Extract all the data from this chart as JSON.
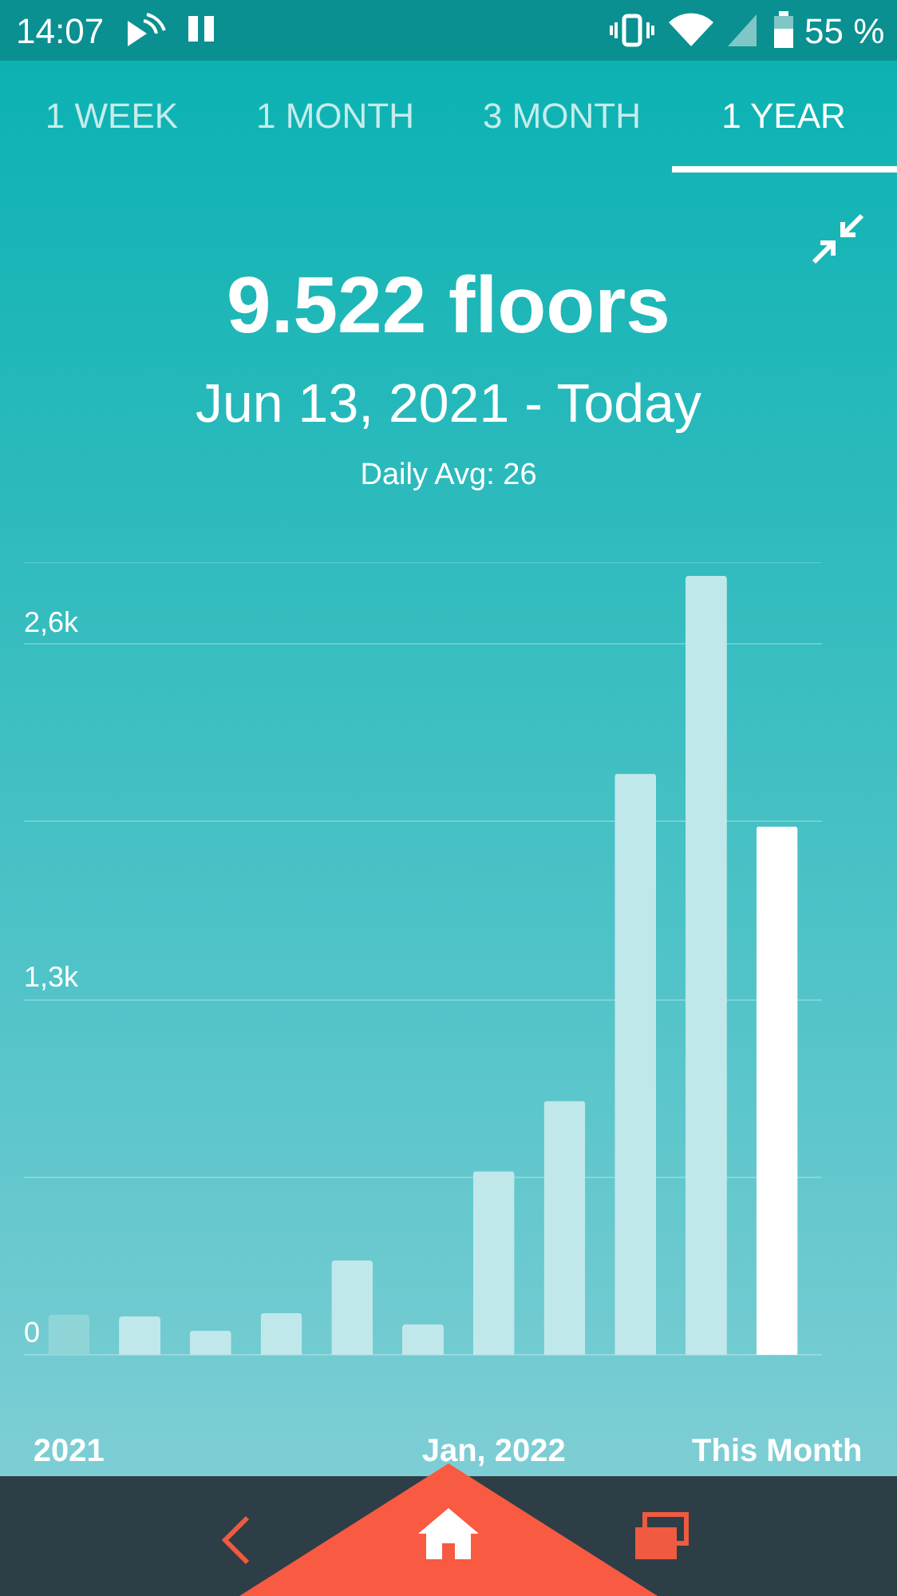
{
  "chart_data": {
    "type": "bar",
    "title": "9.522 floors",
    "subtitle": "Jun 13, 2021 - Today",
    "annotations": [
      "14:07",
      "55 %",
      "1 WEEK",
      "1 MONTH",
      "3 MONTH",
      "1 YEAR",
      "Daily Avg: 26"
    ],
    "categories": [
      "2021",
      null,
      null,
      null,
      null,
      null,
      "Jan, 2022",
      null,
      null,
      null,
      "This Month"
    ],
    "values": [
      146,
      140,
      88,
      152,
      345,
      111,
      672,
      929,
      2127,
      2851,
      1934
    ],
    "colors": [
      "#8fd5d8",
      "#c0e8ea",
      "#c0e8ea",
      "#c0e8ea",
      "#c0e8ea",
      "#c0e8ea",
      "#c0e8ea",
      "#c0e8ea",
      "#c0e8ea",
      "#c0e8ea",
      "#ffffff"
    ],
    "ylim": [
      0,
      2900
    ],
    "yticks": [
      0,
      {
        "value": 650,
        "label": null
      },
      {
        "value": 1300,
        "label": "1,3k"
      },
      {
        "value": 1950,
        "label": null
      },
      {
        "value": 2600,
        "label": "2,6k"
      },
      {
        "value": 2900,
        "label": null
      }
    ],
    "grid": true
  }
}
